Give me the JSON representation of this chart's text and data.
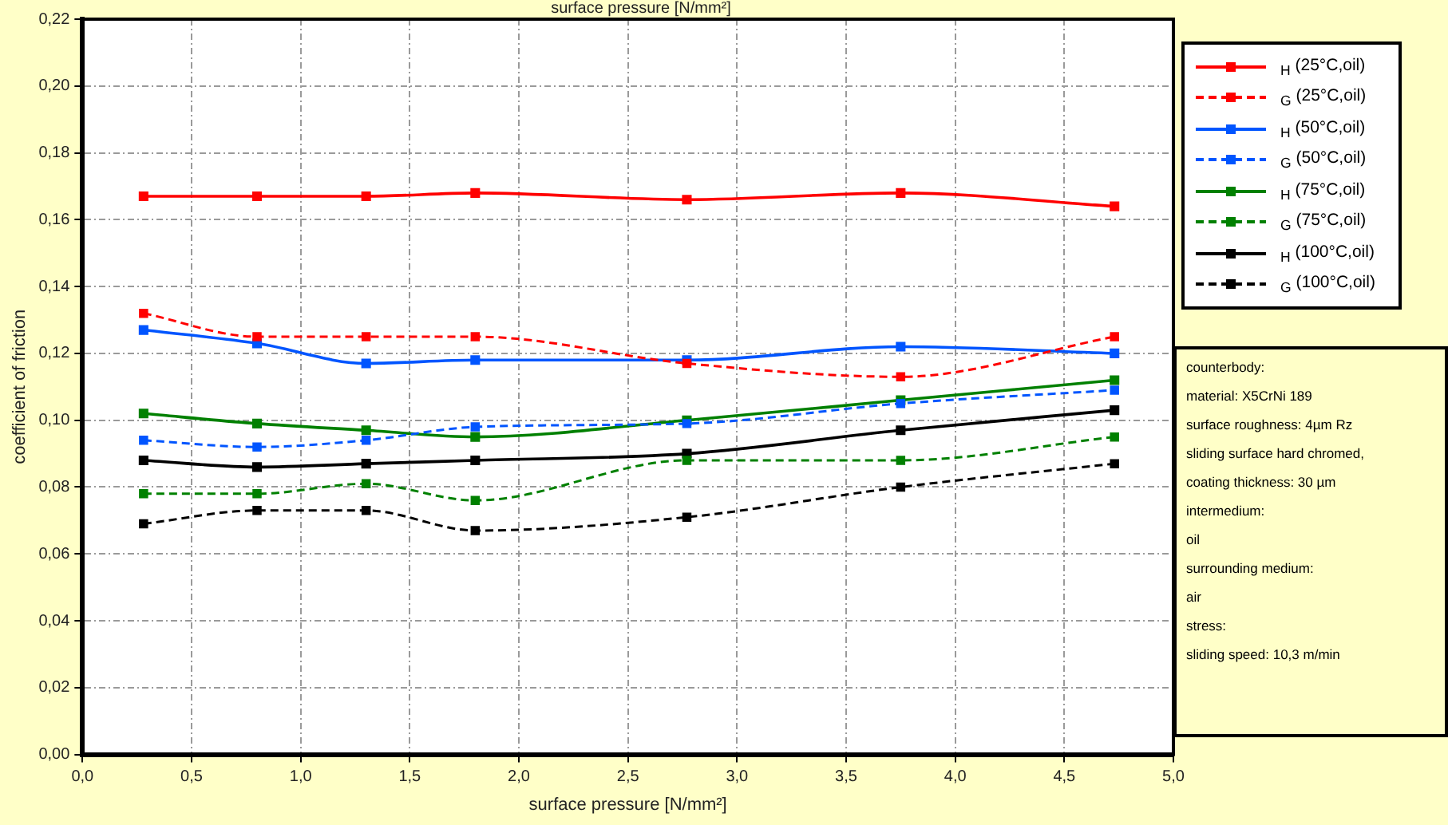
{
  "chart_data": {
    "type": "line",
    "title": "surface pressure [N/mm²]",
    "xlabel": "surface pressure [N/mm²]",
    "ylabel": "coefficient of friction",
    "x": [
      0.28,
      0.8,
      1.3,
      1.8,
      2.77,
      3.75,
      4.73
    ],
    "xlim": [
      0,
      5
    ],
    "ylim": [
      0,
      0.22
    ],
    "xticks": [
      {
        "value": 0,
        "label": "0,0"
      },
      {
        "value": 0.5,
        "label": "0,5"
      },
      {
        "value": 1,
        "label": "1,0"
      },
      {
        "value": 1.5,
        "label": "1,5"
      },
      {
        "value": 2,
        "label": "2,0"
      },
      {
        "value": 2.5,
        "label": "2,5"
      },
      {
        "value": 3,
        "label": "3,0"
      },
      {
        "value": 3.5,
        "label": "3,5"
      },
      {
        "value": 4,
        "label": "4,0"
      },
      {
        "value": 4.5,
        "label": "4,5"
      },
      {
        "value": 5,
        "label": "5,0"
      }
    ],
    "yticks": [
      {
        "value": 0,
        "label": "0,00"
      },
      {
        "value": 0.02,
        "label": "0,02"
      },
      {
        "value": 0.04,
        "label": "0,04"
      },
      {
        "value": 0.06,
        "label": "0,06"
      },
      {
        "value": 0.08,
        "label": "0,08"
      },
      {
        "value": 0.1,
        "label": "0,10"
      },
      {
        "value": 0.12,
        "label": "0,12"
      },
      {
        "value": 0.14,
        "label": "0,14"
      },
      {
        "value": 0.16,
        "label": "0,16"
      },
      {
        "value": 0.18,
        "label": "0,18"
      },
      {
        "value": 0.2,
        "label": "0,20"
      },
      {
        "value": 0.22,
        "label": "0,22"
      }
    ],
    "grid": true,
    "legend": "right",
    "marker": "square",
    "series": [
      {
        "name": "$_{H}$ (25°C,oil)",
        "color": "#ff0000",
        "line_style": "solid",
        "values": [
          0.167,
          0.167,
          0.167,
          0.168,
          0.166,
          0.168,
          0.164
        ]
      },
      {
        "name": "$_{G}$ (25°C,oil)",
        "color": "#ff0000",
        "line_style": "dashed",
        "values": [
          0.132,
          0.125,
          0.125,
          0.125,
          0.117,
          0.113,
          0.125
        ]
      },
      {
        "name": "$_{H}$ (50°C,oil)",
        "color": "#0055ff",
        "line_style": "solid",
        "values": [
          0.127,
          0.123,
          0.117,
          0.118,
          0.118,
          0.122,
          0.12
        ]
      },
      {
        "name": "$_{G}$ (50°C,oil)",
        "color": "#0055ff",
        "line_style": "dashed",
        "values": [
          0.094,
          0.092,
          0.094,
          0.098,
          0.099,
          0.105,
          0.109
        ]
      },
      {
        "name": "$_{H}$ (75°C,oil)",
        "color": "#008000",
        "line_style": "solid",
        "values": [
          0.102,
          0.099,
          0.097,
          0.095,
          0.1,
          0.106,
          0.112
        ]
      },
      {
        "name": "$_{G}$ (75°C,oil)",
        "color": "#008000",
        "line_style": "dashed",
        "values": [
          0.078,
          0.078,
          0.081,
          0.076,
          0.088,
          0.088,
          0.095
        ]
      },
      {
        "name": "$_{H}$ (100°C,oil)",
        "color": "#000000",
        "line_style": "solid",
        "values": [
          0.088,
          0.086,
          0.087,
          0.088,
          0.09,
          0.097,
          0.103
        ]
      },
      {
        "name": "$_{G}$ (100°C,oil)",
        "color": "#000000",
        "line_style": "dashed",
        "values": [
          0.069,
          0.073,
          0.073,
          0.067,
          0.071,
          0.08,
          0.087
        ]
      }
    ],
    "annotations": [
      "counterbody:",
      "material: X5CrNi 189",
      "surface roughness: 4µm Rz",
      "sliding surface hard chromed,",
      "coating thickness: 30 µm",
      "intermedium:",
      "oil",
      "surrounding medium:",
      "air",
      "stress:",
      "sliding speed: 10,3 m/min"
    ]
  }
}
